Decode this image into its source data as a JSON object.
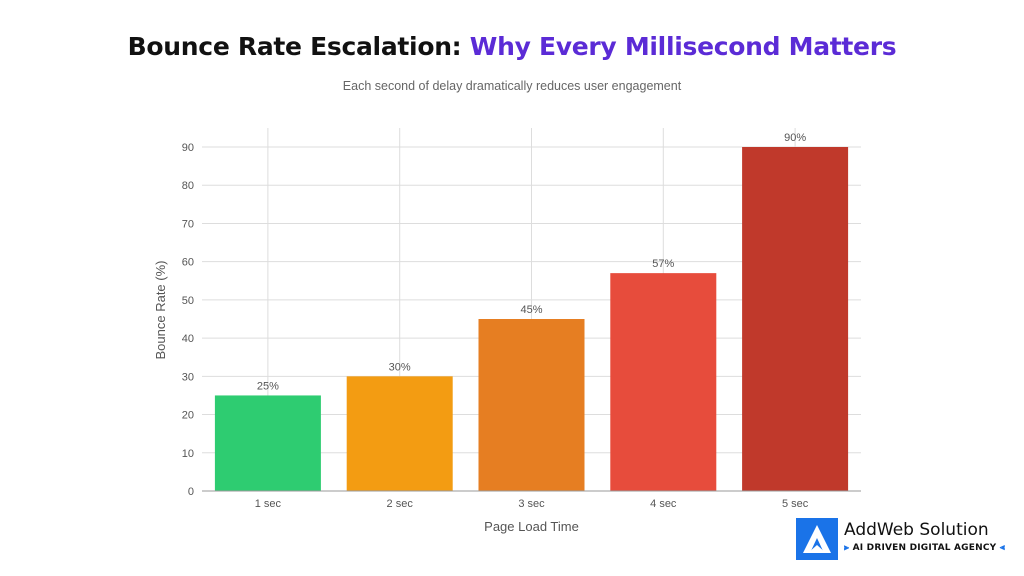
{
  "header": {
    "title_part1": "Bounce Rate Escalation:",
    "title_part2": "Why Every Millisecond Matters",
    "subtitle": "Each second of delay dramatically reduces user engagement"
  },
  "colors": {
    "title_dark": "#111111",
    "title_accent": "#5b2bd6",
    "bars": [
      "#2ecc71",
      "#f39c12",
      "#e67e22",
      "#e74c3c",
      "#c0392b"
    ],
    "logo_blue": "#1a73e8"
  },
  "chart_data": {
    "type": "bar",
    "categories": [
      "1 sec",
      "2 sec",
      "3 sec",
      "4 sec",
      "5 sec"
    ],
    "values": [
      25,
      30,
      45,
      57,
      90
    ],
    "data_labels": [
      "25%",
      "30%",
      "45%",
      "57%",
      "90%"
    ],
    "xlabel": "Page Load Time",
    "ylabel": "Bounce Rate (%)",
    "ylim": [
      0,
      90
    ],
    "yticks": [
      0,
      10,
      20,
      30,
      40,
      50,
      60,
      70,
      80,
      90
    ],
    "grid": true,
    "legend": false
  },
  "logo": {
    "name": "AddWeb Solution",
    "tagline": "AI DRIVEN DIGITAL AGENCY",
    "icon": "addweb-a-logo-icon"
  }
}
